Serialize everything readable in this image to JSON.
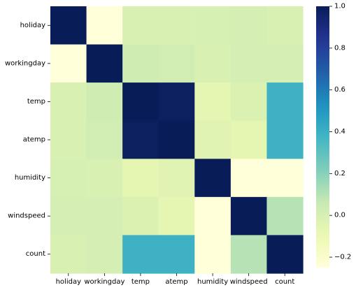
{
  "chart_data": {
    "type": "heatmap",
    "title": "",
    "xlabel": "",
    "ylabel": "",
    "x_categories": [
      "holiday",
      "workingday",
      "temp",
      "atemp",
      "humidity",
      "windspeed",
      "count"
    ],
    "y_categories": [
      "holiday",
      "workingday",
      "temp",
      "atemp",
      "humidity",
      "windspeed",
      "count"
    ],
    "values": [
      [
        1.0,
        -0.25,
        -0.01,
        -0.01,
        0.0,
        0.01,
        -0.01
      ],
      [
        -0.25,
        1.0,
        0.03,
        0.02,
        -0.01,
        0.01,
        0.01
      ],
      [
        -0.01,
        0.03,
        1.0,
        0.98,
        -0.06,
        -0.02,
        0.39
      ],
      [
        -0.01,
        0.02,
        0.98,
        1.0,
        -0.04,
        -0.06,
        0.39
      ],
      [
        0.0,
        -0.01,
        -0.06,
        -0.04,
        1.0,
        -0.32,
        -0.32
      ],
      [
        0.01,
        0.01,
        -0.02,
        -0.06,
        -0.32,
        1.0,
        0.1
      ],
      [
        -0.01,
        0.01,
        0.39,
        0.39,
        -0.32,
        0.1,
        1.0
      ]
    ],
    "colormap": "YlGnBu",
    "colorbar": {
      "min": -0.25,
      "max": 1.0,
      "ticks": [
        -0.2,
        0.0,
        0.2,
        0.4,
        0.6,
        0.8,
        1.0
      ],
      "tick_labels": [
        "−0.2",
        "0.0",
        "0.2",
        "0.4",
        "0.6",
        "0.8",
        "1.0"
      ]
    }
  }
}
